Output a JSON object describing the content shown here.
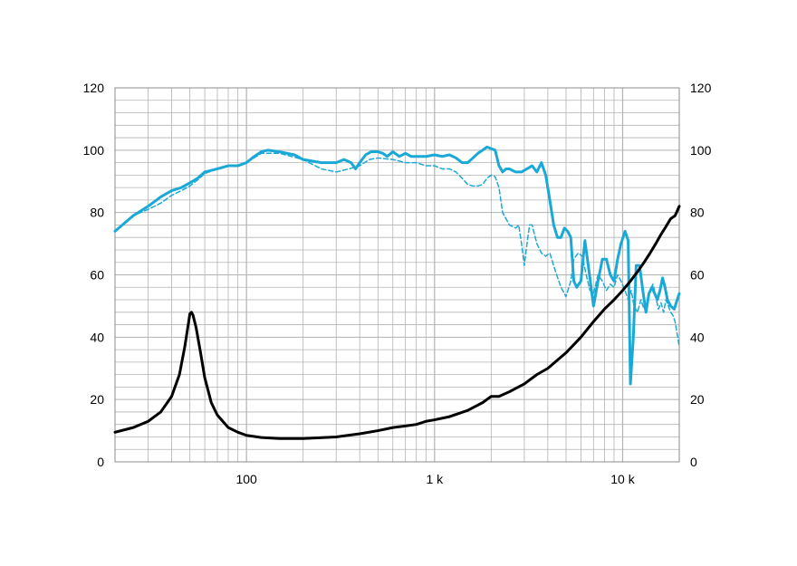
{
  "chart_data": {
    "type": "line",
    "x_scale": "log",
    "xlim": [
      20,
      20000
    ],
    "ylim": [
      0,
      120
    ],
    "y2lim": [
      0,
      120
    ],
    "grid": true,
    "legend": "none",
    "x_ticks": [
      {
        "value": 100,
        "label": "100"
      },
      {
        "value": 1000,
        "label": "1 k"
      },
      {
        "value": 10000,
        "label": "10 k"
      }
    ],
    "y_ticks": [
      {
        "value": 0,
        "label": "0"
      },
      {
        "value": 20,
        "label": "20"
      },
      {
        "value": 40,
        "label": "40"
      },
      {
        "value": 60,
        "label": "60"
      },
      {
        "value": 80,
        "label": "80"
      },
      {
        "value": 100,
        "label": "100"
      },
      {
        "value": 120,
        "label": "120"
      }
    ],
    "y2_ticks": [
      {
        "value": 0,
        "label": "0"
      },
      {
        "value": 20,
        "label": "20"
      },
      {
        "value": 40,
        "label": "40"
      },
      {
        "value": 60,
        "label": "60"
      },
      {
        "value": 80,
        "label": "80"
      },
      {
        "value": 100,
        "label": "100"
      },
      {
        "value": 120,
        "label": "120"
      }
    ],
    "colors": {
      "grid": "#b3b3b3",
      "frame": "#8c8c8c",
      "response": "#1aa9d6",
      "impedance": "#000000"
    },
    "series": [
      {
        "key": "response_on_axis",
        "color": "#1aa9d6",
        "style": "solid",
        "axis": "left",
        "points": [
          [
            20,
            74
          ],
          [
            25,
            79
          ],
          [
            30,
            82
          ],
          [
            35,
            85
          ],
          [
            40,
            87
          ],
          [
            45,
            88
          ],
          [
            50,
            89.5
          ],
          [
            55,
            91
          ],
          [
            60,
            93
          ],
          [
            70,
            94
          ],
          [
            80,
            95
          ],
          [
            90,
            95
          ],
          [
            100,
            96
          ],
          [
            110,
            98
          ],
          [
            120,
            99.5
          ],
          [
            130,
            100
          ],
          [
            150,
            99.5
          ],
          [
            180,
            98.5
          ],
          [
            200,
            97
          ],
          [
            250,
            96
          ],
          [
            300,
            96
          ],
          [
            330,
            97
          ],
          [
            360,
            96
          ],
          [
            380,
            94
          ],
          [
            400,
            96
          ],
          [
            430,
            98.5
          ],
          [
            460,
            99.5
          ],
          [
            500,
            99.5
          ],
          [
            530,
            99
          ],
          [
            560,
            98
          ],
          [
            600,
            99.5
          ],
          [
            650,
            98
          ],
          [
            700,
            99
          ],
          [
            750,
            98
          ],
          [
            800,
            98
          ],
          [
            850,
            98
          ],
          [
            900,
            98
          ],
          [
            1000,
            98.5
          ],
          [
            1100,
            98
          ],
          [
            1200,
            98.5
          ],
          [
            1300,
            97.5
          ],
          [
            1400,
            96
          ],
          [
            1500,
            96
          ],
          [
            1600,
            97.5
          ],
          [
            1700,
            99
          ],
          [
            1800,
            100
          ],
          [
            1900,
            101
          ],
          [
            2000,
            100.5
          ],
          [
            2100,
            100
          ],
          [
            2200,
            95
          ],
          [
            2300,
            93
          ],
          [
            2400,
            94
          ],
          [
            2500,
            94
          ],
          [
            2700,
            93
          ],
          [
            2900,
            93
          ],
          [
            3100,
            94
          ],
          [
            3300,
            95
          ],
          [
            3500,
            93
          ],
          [
            3700,
            96
          ],
          [
            3900,
            92
          ],
          [
            4100,
            84
          ],
          [
            4300,
            76
          ],
          [
            4500,
            72
          ],
          [
            4700,
            72
          ],
          [
            4900,
            75
          ],
          [
            5100,
            74
          ],
          [
            5300,
            72
          ],
          [
            5500,
            58
          ],
          [
            5700,
            56
          ],
          [
            6000,
            58
          ],
          [
            6300,
            71
          ],
          [
            6600,
            62
          ],
          [
            7000,
            50
          ],
          [
            7400,
            58
          ],
          [
            7800,
            65
          ],
          [
            8200,
            65
          ],
          [
            8600,
            60
          ],
          [
            9000,
            58
          ],
          [
            9400,
            65
          ],
          [
            9800,
            70
          ],
          [
            10300,
            74
          ],
          [
            10700,
            71
          ],
          [
            11000,
            25
          ],
          [
            11400,
            40
          ],
          [
            11800,
            63
          ],
          [
            12300,
            63
          ],
          [
            12800,
            55
          ],
          [
            13300,
            48
          ],
          [
            13800,
            54
          ],
          [
            14300,
            56
          ],
          [
            14800,
            54
          ],
          [
            15300,
            52
          ],
          [
            15800,
            55
          ],
          [
            16300,
            59
          ],
          [
            16800,
            56
          ],
          [
            17300,
            52
          ],
          [
            18000,
            50
          ],
          [
            18800,
            49
          ],
          [
            19500,
            52
          ],
          [
            20000,
            54
          ]
        ]
      },
      {
        "key": "response_off_axis",
        "color": "#1aa9d6",
        "style": "dashed",
        "axis": "left",
        "points": [
          [
            20,
            74
          ],
          [
            25,
            79
          ],
          [
            30,
            81
          ],
          [
            35,
            83
          ],
          [
            40,
            85.5
          ],
          [
            45,
            87
          ],
          [
            50,
            88.5
          ],
          [
            55,
            90.5
          ],
          [
            60,
            92.5
          ],
          [
            70,
            94
          ],
          [
            80,
            95
          ],
          [
            90,
            95
          ],
          [
            100,
            96
          ],
          [
            120,
            99
          ],
          [
            150,
            99
          ],
          [
            200,
            97
          ],
          [
            250,
            94
          ],
          [
            300,
            93
          ],
          [
            350,
            94
          ],
          [
            400,
            95
          ],
          [
            450,
            97
          ],
          [
            500,
            97.5
          ],
          [
            600,
            97
          ],
          [
            700,
            96
          ],
          [
            800,
            96
          ],
          [
            900,
            95
          ],
          [
            1000,
            95
          ],
          [
            1100,
            94
          ],
          [
            1200,
            94
          ],
          [
            1300,
            93
          ],
          [
            1400,
            91
          ],
          [
            1500,
            89
          ],
          [
            1600,
            88.5
          ],
          [
            1700,
            88.5
          ],
          [
            1800,
            89
          ],
          [
            1900,
            91
          ],
          [
            2000,
            92
          ],
          [
            2100,
            91.5
          ],
          [
            2200,
            88
          ],
          [
            2300,
            80
          ],
          [
            2500,
            76
          ],
          [
            2700,
            75
          ],
          [
            2800,
            76
          ],
          [
            2900,
            70
          ],
          [
            3000,
            63
          ],
          [
            3100,
            70
          ],
          [
            3200,
            76
          ],
          [
            3300,
            76
          ],
          [
            3500,
            70
          ],
          [
            3700,
            67
          ],
          [
            3900,
            66
          ],
          [
            4100,
            67
          ],
          [
            4400,
            61
          ],
          [
            4700,
            56
          ],
          [
            5000,
            53
          ],
          [
            5300,
            58
          ],
          [
            5500,
            65
          ],
          [
            5800,
            67
          ],
          [
            6100,
            66
          ],
          [
            6400,
            60
          ],
          [
            6700,
            55
          ],
          [
            7000,
            54
          ],
          [
            7400,
            60
          ],
          [
            7800,
            58
          ],
          [
            8200,
            55
          ],
          [
            8600,
            57
          ],
          [
            9000,
            56
          ],
          [
            9400,
            60
          ],
          [
            9800,
            58
          ],
          [
            10300,
            55
          ],
          [
            10700,
            52
          ],
          [
            11100,
            55
          ],
          [
            11500,
            50
          ],
          [
            12000,
            48
          ],
          [
            12500,
            52
          ],
          [
            13000,
            49
          ],
          [
            13500,
            51
          ],
          [
            14000,
            55
          ],
          [
            14500,
            57
          ],
          [
            15000,
            53
          ],
          [
            15500,
            49
          ],
          [
            16000,
            51
          ],
          [
            16500,
            48
          ],
          [
            17000,
            52
          ],
          [
            17500,
            50
          ],
          [
            18000,
            48
          ],
          [
            18500,
            47
          ],
          [
            19000,
            45
          ],
          [
            19500,
            41
          ],
          [
            20000,
            37
          ]
        ]
      },
      {
        "key": "impedance",
        "color": "#000000",
        "style": "solid",
        "axis": "right",
        "points": [
          [
            20,
            9.5
          ],
          [
            25,
            11
          ],
          [
            30,
            13
          ],
          [
            35,
            16
          ],
          [
            40,
            21
          ],
          [
            44,
            28
          ],
          [
            47,
            37
          ],
          [
            49,
            44
          ],
          [
            50,
            47.5
          ],
          [
            51,
            48
          ],
          [
            52,
            47
          ],
          [
            54,
            43
          ],
          [
            57,
            35
          ],
          [
            60,
            27
          ],
          [
            65,
            19
          ],
          [
            70,
            15
          ],
          [
            80,
            11
          ],
          [
            90,
            9.5
          ],
          [
            100,
            8.5
          ],
          [
            120,
            7.8
          ],
          [
            150,
            7.5
          ],
          [
            200,
            7.5
          ],
          [
            300,
            8
          ],
          [
            400,
            9
          ],
          [
            500,
            10
          ],
          [
            600,
            11
          ],
          [
            700,
            11.5
          ],
          [
            800,
            12
          ],
          [
            900,
            13
          ],
          [
            1000,
            13.5
          ],
          [
            1200,
            14.5
          ],
          [
            1500,
            16.5
          ],
          [
            1800,
            19
          ],
          [
            2000,
            21
          ],
          [
            2200,
            21
          ],
          [
            2500,
            22.5
          ],
          [
            3000,
            25
          ],
          [
            3500,
            28
          ],
          [
            4000,
            30
          ],
          [
            5000,
            35
          ],
          [
            6000,
            40
          ],
          [
            7000,
            45
          ],
          [
            8000,
            49
          ],
          [
            9000,
            52
          ],
          [
            10000,
            55
          ],
          [
            11000,
            58
          ],
          [
            12000,
            61
          ],
          [
            13000,
            64
          ],
          [
            14000,
            67
          ],
          [
            15000,
            70
          ],
          [
            16000,
            73
          ],
          [
            17000,
            75.5
          ],
          [
            18000,
            78
          ],
          [
            19000,
            79
          ],
          [
            19500,
            80.5
          ],
          [
            20000,
            82
          ]
        ]
      }
    ]
  }
}
